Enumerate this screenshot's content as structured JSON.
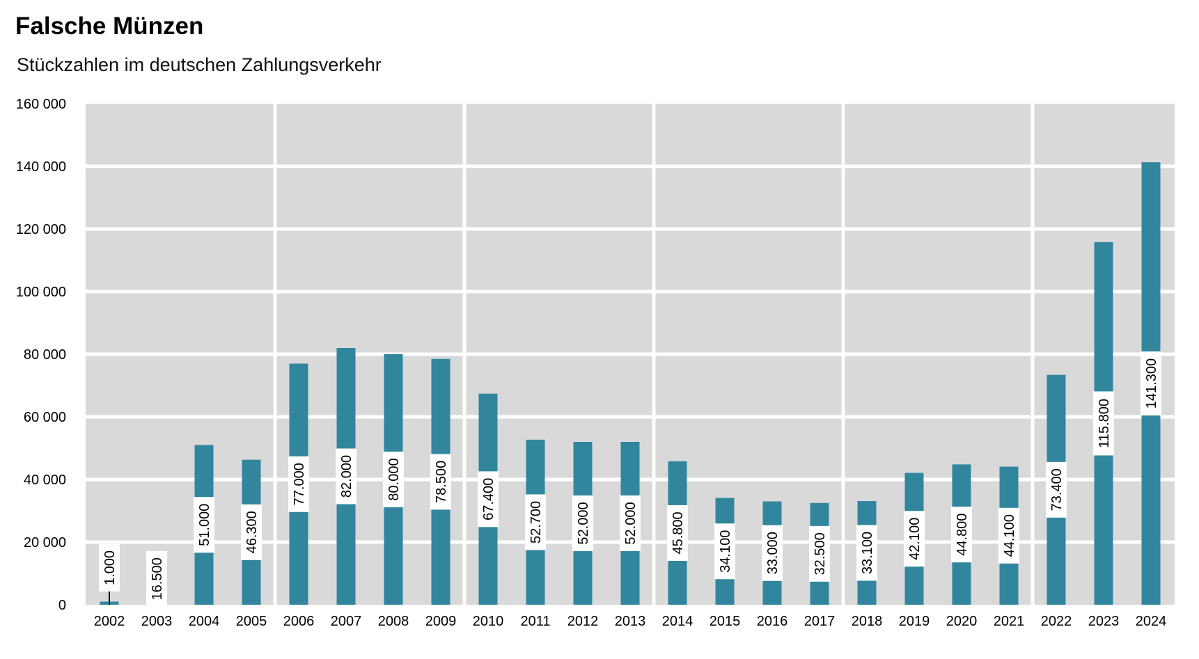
{
  "chart_data": {
    "type": "bar",
    "title": "Falsche Münzen",
    "subtitle": "Stückzahlen im deutschen Zahlungsverkehr",
    "xlabel": "",
    "ylabel": "",
    "ylim": [
      0,
      160000
    ],
    "yticks": [
      0,
      20000,
      40000,
      60000,
      80000,
      100000,
      120000,
      140000,
      160000
    ],
    "ytick_labels": [
      "0",
      "20 000",
      "40 000",
      "60 000",
      "80 000",
      "100 000",
      "120 000",
      "140 000",
      "160 000"
    ],
    "categories": [
      "2002",
      "2003",
      "2004",
      "2005",
      "2006",
      "2007",
      "2008",
      "2009",
      "2010",
      "2011",
      "2012",
      "2013",
      "2014",
      "2015",
      "2016",
      "2017",
      "2018",
      "2019",
      "2020",
      "2021",
      "2022",
      "2023",
      "2024"
    ],
    "values": [
      1000,
      16500,
      51000,
      46300,
      77000,
      82000,
      80000,
      78500,
      67400,
      52700,
      52000,
      52000,
      45800,
      34100,
      33000,
      32500,
      33100,
      42100,
      44800,
      44100,
      73400,
      115800,
      141300
    ],
    "data_labels": [
      "1.000",
      "16.500",
      "51.000",
      "46.300",
      "77.000",
      "82.000",
      "80.000",
      "78.500",
      "67.400",
      "52.700",
      "52.000",
      "52.000",
      "45.800",
      "34.100",
      "33.000",
      "32.500",
      "33.100",
      "42.100",
      "44.800",
      "44.100",
      "73.400",
      "115.800",
      "141.300"
    ],
    "grid": true,
    "colors": {
      "bar": "#31869e",
      "plot_background": "#d9d9d9",
      "grid": "#ffffff"
    }
  }
}
